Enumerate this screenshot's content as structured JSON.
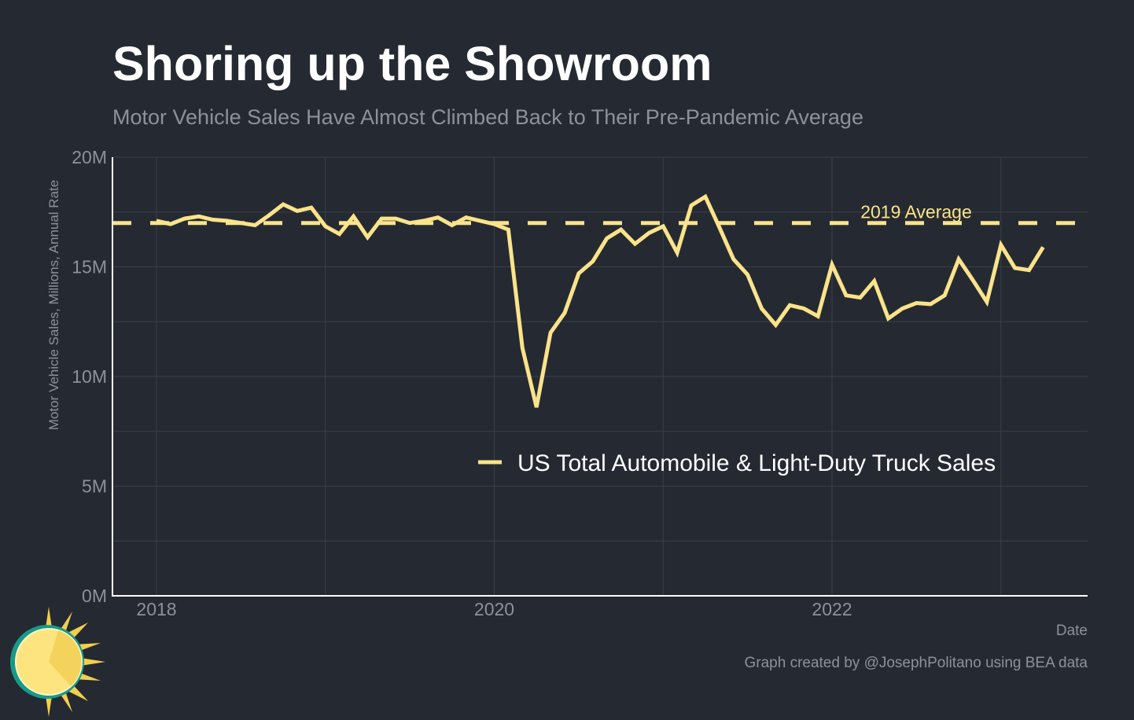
{
  "colors": {
    "background": "#252a32",
    "line": "#fbe38a",
    "grid": "#3a3f48",
    "axis": "#ffffff",
    "muted_text": "#8d9199"
  },
  "header": {
    "title": "Shoring up the Showroom",
    "subtitle": "Motor Vehicle Sales Have Almost Climbed Back to Their Pre-Pandemic Average"
  },
  "credit": "Graph created by @JosephPolitano using BEA data",
  "logo": {
    "icon": "sun-logo-icon"
  },
  "chart_data": {
    "type": "line",
    "title": "Shoring up the Showroom",
    "subtitle": "Motor Vehicle Sales Have Almost Climbed Back to Their Pre-Pandemic Average",
    "xlabel": "Date",
    "ylabel": "Motor Vehicle Sales, Millions, Annual Rate",
    "ylim": [
      0,
      20
    ],
    "xlim": [
      "2017-09",
      "2023-09"
    ],
    "yticks": [
      {
        "value": 0,
        "label": "0M"
      },
      {
        "value": 5,
        "label": "5M"
      },
      {
        "value": 10,
        "label": "10M"
      },
      {
        "value": 15,
        "label": "15M"
      },
      {
        "value": 20,
        "label": "20M"
      }
    ],
    "xticks": [
      {
        "value": "2018-01",
        "label": "2018"
      },
      {
        "value": "2020-01",
        "label": "2020"
      },
      {
        "value": "2022-01",
        "label": "2022"
      }
    ],
    "grid": true,
    "legend_position": "center-right",
    "reference_line": {
      "label": "2019 Average",
      "value": 17.0,
      "style": "dashed"
    },
    "series": [
      {
        "name": "US Total Automobile & Light-Duty Truck Sales",
        "x": [
          "2018-01",
          "2018-02",
          "2018-03",
          "2018-04",
          "2018-05",
          "2018-06",
          "2018-07",
          "2018-08",
          "2018-09",
          "2018-10",
          "2018-11",
          "2018-12",
          "2019-01",
          "2019-02",
          "2019-03",
          "2019-04",
          "2019-05",
          "2019-06",
          "2019-07",
          "2019-08",
          "2019-09",
          "2019-10",
          "2019-11",
          "2019-12",
          "2020-01",
          "2020-02",
          "2020-03",
          "2020-04",
          "2020-05",
          "2020-06",
          "2020-07",
          "2020-08",
          "2020-09",
          "2020-10",
          "2020-11",
          "2020-12",
          "2021-01",
          "2021-02",
          "2021-03",
          "2021-04",
          "2021-05",
          "2021-06",
          "2021-07",
          "2021-08",
          "2021-09",
          "2021-10",
          "2021-11",
          "2021-12",
          "2022-01",
          "2022-02",
          "2022-03",
          "2022-04",
          "2022-05",
          "2022-06",
          "2022-07",
          "2022-08",
          "2022-09",
          "2022-10",
          "2022-11",
          "2022-12",
          "2023-01",
          "2023-02",
          "2023-03",
          "2023-04"
        ],
        "values": [
          17.1,
          16.95,
          17.2,
          17.3,
          17.15,
          17.1,
          17.0,
          16.9,
          17.35,
          17.85,
          17.55,
          17.7,
          16.85,
          16.5,
          17.3,
          16.35,
          17.2,
          17.2,
          17.0,
          17.1,
          17.25,
          16.9,
          17.25,
          17.1,
          16.95,
          16.7,
          11.3,
          8.6,
          12.0,
          12.9,
          14.7,
          15.25,
          16.3,
          16.7,
          16.05,
          16.55,
          16.85,
          15.65,
          17.8,
          18.2,
          16.8,
          15.35,
          14.65,
          13.1,
          12.35,
          13.25,
          13.1,
          12.75,
          15.1,
          13.7,
          13.6,
          14.35,
          12.65,
          13.1,
          13.35,
          13.3,
          13.7,
          15.35,
          14.4,
          13.4,
          16.0,
          14.95,
          14.85,
          15.9
        ]
      }
    ]
  }
}
